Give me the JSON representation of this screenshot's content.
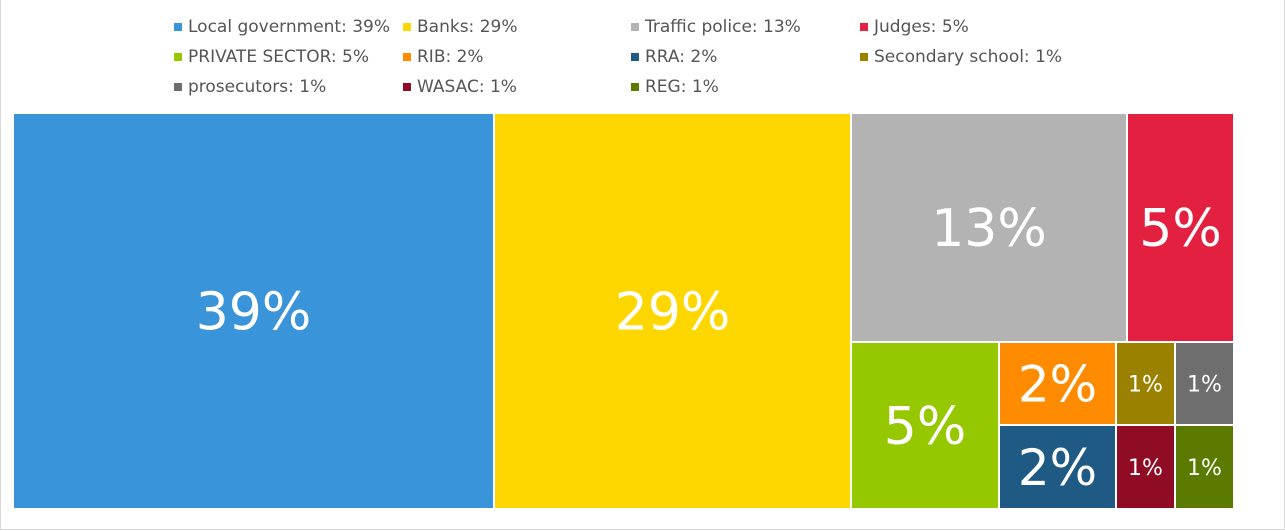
{
  "chart_data": {
    "type": "treemap",
    "items": [
      {
        "name": "Local government",
        "value": 39,
        "label": "39%",
        "color": "#3a94d9"
      },
      {
        "name": "Banks",
        "value": 29,
        "label": "29%",
        "color": "#ffd700"
      },
      {
        "name": "Traffic police",
        "value": 13,
        "label": "13%",
        "color": "#b3b3b3"
      },
      {
        "name": "Judges",
        "value": 5,
        "label": "5%",
        "color": "#e32040"
      },
      {
        "name": "PRIVATE SECTOR",
        "value": 5,
        "label": "5%",
        "color": "#96c800"
      },
      {
        "name": "RIB",
        "value": 2,
        "label": "2%",
        "color": "#ff8c00"
      },
      {
        "name": "RRA",
        "value": 2,
        "label": "2%",
        "color": "#1f5a84"
      },
      {
        "name": "Secondary school",
        "value": 1,
        "label": "1%",
        "color": "#9a8200"
      },
      {
        "name": "prosecutors",
        "value": 1,
        "label": "1%",
        "color": "#6e6e6e"
      },
      {
        "name": "WASAC",
        "value": 1,
        "label": "1%",
        "color": "#900c24"
      },
      {
        "name": "REG",
        "value": 1,
        "label": "1%",
        "color": "#5a7a00"
      }
    ],
    "legend": {
      "position": "top",
      "entries": [
        "Local government: 39%",
        "Banks: 29%",
        "Traffic police: 13%",
        "Judges: 5%",
        "PRIVATE SECTOR: 5%",
        "RIB: 2%",
        "RRA: 2%",
        "Secondary school: 1%",
        "prosecutors: 1%",
        "WASAC: 1%",
        "REG: 1%"
      ]
    }
  }
}
